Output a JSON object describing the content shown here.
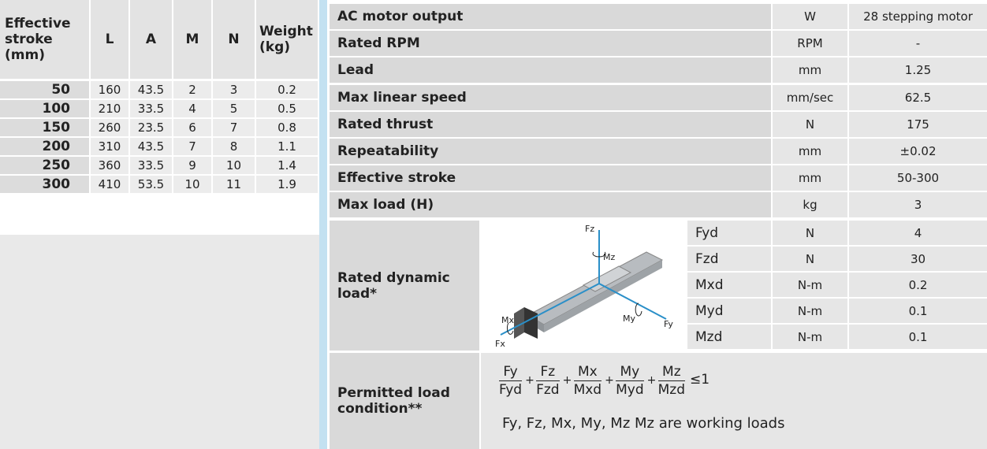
{
  "left_table": {
    "headers": [
      "Effective stroke (mm)",
      "L",
      "A",
      "M",
      "N",
      "Weight (kg)"
    ],
    "rows": [
      [
        "50",
        "160",
        "43.5",
        "2",
        "3",
        "0.2"
      ],
      [
        "100",
        "210",
        "33.5",
        "4",
        "5",
        "0.5"
      ],
      [
        "150",
        "260",
        "23.5",
        "6",
        "7",
        "0.8"
      ],
      [
        "200",
        "310",
        "43.5",
        "7",
        "8",
        "1.1"
      ],
      [
        "250",
        "360",
        "33.5",
        "9",
        "10",
        "1.4"
      ],
      [
        "300",
        "410",
        "53.5",
        "10",
        "11",
        "1.9"
      ]
    ]
  },
  "right_table": {
    "rows": [
      {
        "label": "AC motor output",
        "unit": "W",
        "value": "28 stepping motor"
      },
      {
        "label": "Rated RPM",
        "unit": "RPM",
        "value": "-"
      },
      {
        "label": "Lead",
        "unit": "mm",
        "value": "1.25"
      },
      {
        "label": "Max linear speed",
        "unit": "mm/sec",
        "value": "62.5"
      },
      {
        "label": "Rated thrust",
        "unit": "N",
        "value": "175"
      },
      {
        "label": "Repeatability",
        "unit": "mm",
        "value": "±0.02"
      },
      {
        "label": "Effective stroke",
        "unit": "mm",
        "value": "50-300"
      },
      {
        "label": "Max load (H)",
        "unit": "kg",
        "value": "3"
      }
    ],
    "dynamic_load": {
      "label": "Rated dynamic load*",
      "image_labels": {
        "fz": "Fz",
        "mz": "Mz",
        "mx": "Mx",
        "fx": "Fx",
        "my": "My",
        "fy": "Fy"
      },
      "rows": [
        {
          "name": "Fyd",
          "unit": "N",
          "value": "4"
        },
        {
          "name": "Fzd",
          "unit": "N",
          "value": "30"
        },
        {
          "name": "Mxd",
          "unit": "N-m",
          "value": "0.2"
        },
        {
          "name": "Myd",
          "unit": "N-m",
          "value": "0.1"
        },
        {
          "name": "Mzd",
          "unit": "N-m",
          "value": "0.1"
        }
      ]
    },
    "permitted": {
      "label": "Permitted load condition**",
      "formula": {
        "terms": [
          {
            "num": "Fy",
            "den": "Fyd"
          },
          {
            "num": "Fz",
            "den": "Fzd"
          },
          {
            "num": "Mx",
            "den": "Mxd"
          },
          {
            "num": "My",
            "den": "Myd"
          },
          {
            "num": "Mz",
            "den": "Mzd"
          }
        ],
        "plus": "+",
        "relation": "≤1"
      },
      "note": "Fy, Fz, Mx, My, Mz Mz are working loads"
    }
  }
}
